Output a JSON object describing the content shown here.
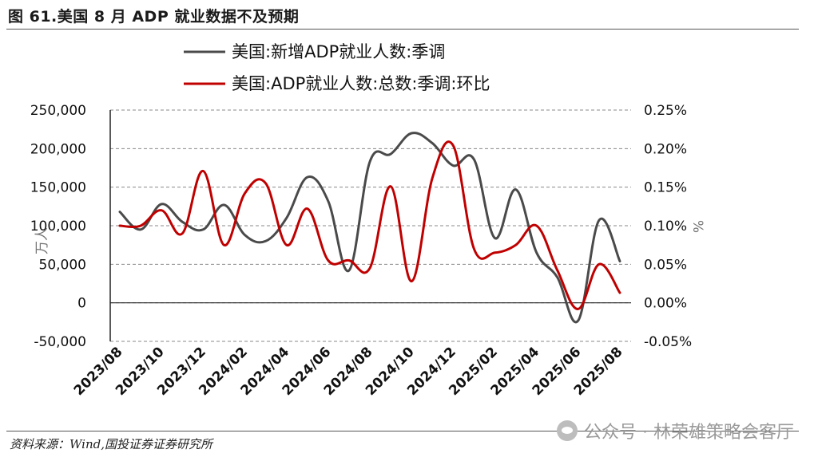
{
  "header": {
    "title": "图 61.美国 8 月 ADP 就业数据不及预期"
  },
  "footer": {
    "source": "资料来源：Wind,国投证券证券研究所",
    "watermark": "公众号 · 林荣雄策略会客厅"
  },
  "chart_data": {
    "type": "line",
    "legend": [
      "美国:新增ADP就业人数:季调",
      "美国:ADP就业人数:总数:季调:环比"
    ],
    "legend_placement": "top-center",
    "x_tick_labels": [
      "2023/08",
      "2023/10",
      "2023/12",
      "2024/02",
      "2024/04",
      "2024/06",
      "2024/08",
      "2024/10",
      "2024/12",
      "2025/02",
      "2025/04",
      "2025/06",
      "2025/08"
    ],
    "x": [
      "2023/08",
      "2023/09",
      "2023/10",
      "2023/11",
      "2023/12",
      "2024/01",
      "2024/02",
      "2024/03",
      "2024/04",
      "2024/05",
      "2024/06",
      "2024/07",
      "2024/08",
      "2024/09",
      "2024/10",
      "2024/11",
      "2024/12",
      "2025/01",
      "2025/02",
      "2025/03",
      "2025/04",
      "2025/05",
      "2025/06",
      "2025/07",
      "2025/08"
    ],
    "y_left": {
      "label": "万人",
      "ylim": [
        -50000,
        250000
      ],
      "ticks": [
        -50000,
        0,
        50000,
        100000,
        150000,
        200000,
        250000
      ],
      "tick_labels": [
        "-50,000",
        "0",
        "50,000",
        "100,000",
        "150,000",
        "200,000",
        "250,000"
      ]
    },
    "y_right": {
      "label": "%",
      "ylim": [
        -0.05,
        0.25
      ],
      "ticks": [
        -0.05,
        0,
        0.05,
        0.1,
        0.15,
        0.2,
        0.25
      ],
      "tick_labels": [
        "-0.05%",
        "0.00%",
        "0.05%",
        "0.10%",
        "0.15%",
        "0.20%",
        "0.25%"
      ]
    },
    "series": [
      {
        "name": "美国:新增ADP就业人数:季调",
        "axis": "left",
        "color": "#4a4a4a",
        "values": [
          118000,
          95000,
          128000,
          105000,
          95000,
          127000,
          88000,
          80000,
          110000,
          163000,
          132000,
          42000,
          183000,
          193000,
          220000,
          207000,
          178000,
          186000,
          84000,
          147000,
          65000,
          33000,
          -23000,
          107000,
          54000
        ]
      },
      {
        "name": "美国:ADP就业人数:总数:季调:环比",
        "axis": "right",
        "color": "#c00000",
        "values": [
          0.1,
          0.1,
          0.12,
          0.09,
          0.171,
          0.075,
          0.142,
          0.155,
          0.075,
          0.122,
          0.055,
          0.055,
          0.045,
          0.151,
          0.028,
          0.162,
          0.204,
          0.07,
          0.065,
          0.075,
          0.1,
          0.042,
          -0.008,
          0.05,
          0.013
        ]
      }
    ],
    "grid": true
  }
}
